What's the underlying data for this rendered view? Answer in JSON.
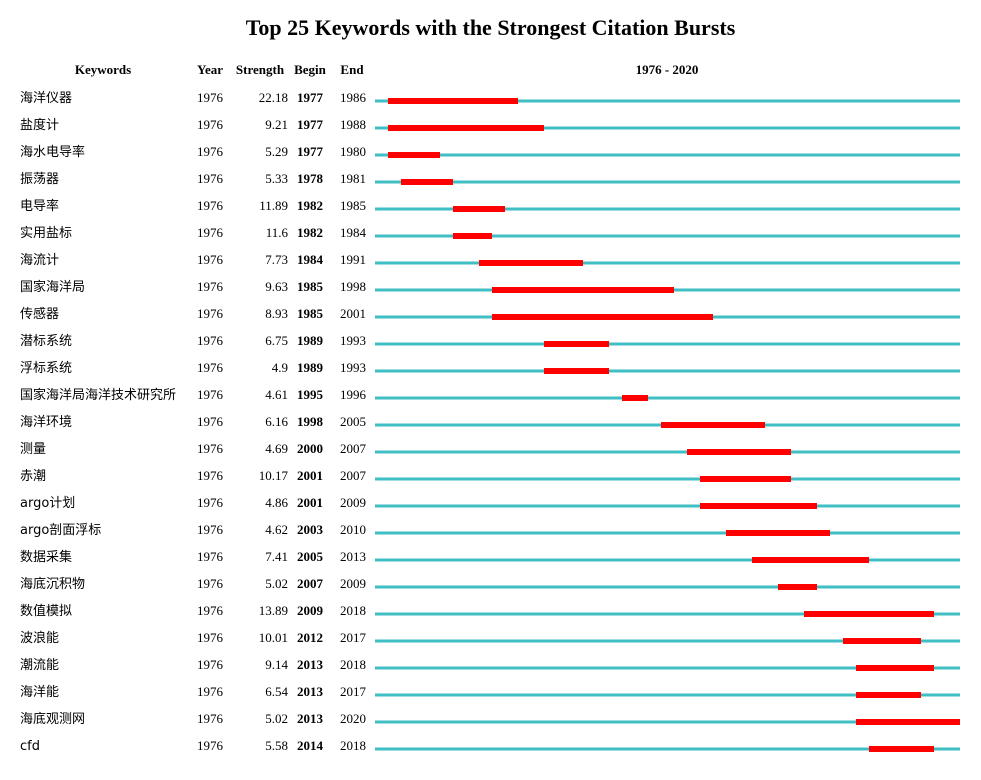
{
  "chart_data": {
    "type": "table",
    "title": "Top 25 Keywords with the Strongest Citation Bursts",
    "columns": [
      "Keywords",
      "Year",
      "Strength",
      "Begin",
      "End",
      "1976 - 2020"
    ],
    "timeline": {
      "start": 1976,
      "end": 2020
    },
    "colors": {
      "baseline": "#3fbfc4",
      "burst": "#ff0000"
    },
    "rows": [
      {
        "keyword": "海洋仪器",
        "year": "1976",
        "strength": "22.18",
        "begin": "1977",
        "end": "1986"
      },
      {
        "keyword": "盐度计",
        "year": "1976",
        "strength": "9.21",
        "begin": "1977",
        "end": "1988"
      },
      {
        "keyword": "海水电导率",
        "year": "1976",
        "strength": "5.29",
        "begin": "1977",
        "end": "1980"
      },
      {
        "keyword": "振荡器",
        "year": "1976",
        "strength": "5.33",
        "begin": "1978",
        "end": "1981"
      },
      {
        "keyword": "电导率",
        "year": "1976",
        "strength": "11.89",
        "begin": "1982",
        "end": "1985"
      },
      {
        "keyword": "实用盐标",
        "year": "1976",
        "strength": "11.6",
        "begin": "1982",
        "end": "1984"
      },
      {
        "keyword": "海流计",
        "year": "1976",
        "strength": "7.73",
        "begin": "1984",
        "end": "1991"
      },
      {
        "keyword": "国家海洋局",
        "year": "1976",
        "strength": "9.63",
        "begin": "1985",
        "end": "1998"
      },
      {
        "keyword": "传感器",
        "year": "1976",
        "strength": "8.93",
        "begin": "1985",
        "end": "2001"
      },
      {
        "keyword": "潜标系统",
        "year": "1976",
        "strength": "6.75",
        "begin": "1989",
        "end": "1993"
      },
      {
        "keyword": "浮标系统",
        "year": "1976",
        "strength": "4.9",
        "begin": "1989",
        "end": "1993"
      },
      {
        "keyword": "国家海洋局海洋技术研究所",
        "year": "1976",
        "strength": "4.61",
        "begin": "1995",
        "end": "1996"
      },
      {
        "keyword": "海洋环境",
        "year": "1976",
        "strength": "6.16",
        "begin": "1998",
        "end": "2005"
      },
      {
        "keyword": "测量",
        "year": "1976",
        "strength": "4.69",
        "begin": "2000",
        "end": "2007"
      },
      {
        "keyword": "赤潮",
        "year": "1976",
        "strength": "10.17",
        "begin": "2001",
        "end": "2007"
      },
      {
        "keyword": "argo计划",
        "year": "1976",
        "strength": "4.86",
        "begin": "2001",
        "end": "2009"
      },
      {
        "keyword": "argo剖面浮标",
        "year": "1976",
        "strength": "4.62",
        "begin": "2003",
        "end": "2010"
      },
      {
        "keyword": "数据采集",
        "year": "1976",
        "strength": "7.41",
        "begin": "2005",
        "end": "2013"
      },
      {
        "keyword": "海底沉积物",
        "year": "1976",
        "strength": "5.02",
        "begin": "2007",
        "end": "2009"
      },
      {
        "keyword": "数值模拟",
        "year": "1976",
        "strength": "13.89",
        "begin": "2009",
        "end": "2018"
      },
      {
        "keyword": "波浪能",
        "year": "1976",
        "strength": "10.01",
        "begin": "2012",
        "end": "2017"
      },
      {
        "keyword": "潮流能",
        "year": "1976",
        "strength": "9.14",
        "begin": "2013",
        "end": "2018"
      },
      {
        "keyword": "海洋能",
        "year": "1976",
        "strength": "6.54",
        "begin": "2013",
        "end": "2017"
      },
      {
        "keyword": "海底观测网",
        "year": "1976",
        "strength": "5.02",
        "begin": "2013",
        "end": "2020"
      },
      {
        "keyword": "cfd",
        "year": "1976",
        "strength": "5.58",
        "begin": "2014",
        "end": "2018"
      }
    ]
  }
}
